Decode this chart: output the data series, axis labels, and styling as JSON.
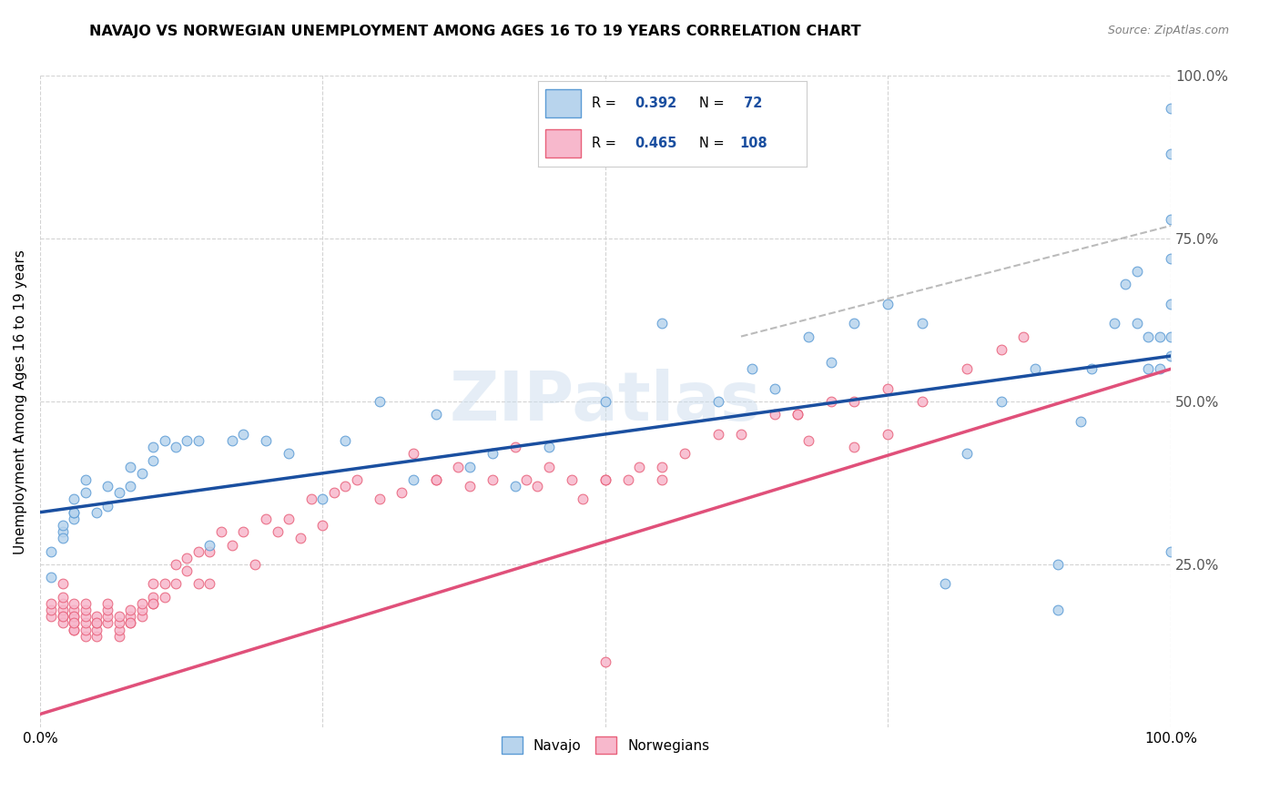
{
  "title": "NAVAJO VS NORWEGIAN UNEMPLOYMENT AMONG AGES 16 TO 19 YEARS CORRELATION CHART",
  "source": "Source: ZipAtlas.com",
  "ylabel": "Unemployment Among Ages 16 to 19 years",
  "xlim": [
    0,
    1
  ],
  "ylim": [
    0,
    1
  ],
  "xtick_labels": [
    "0.0%",
    "100.0%"
  ],
  "xtick_vals": [
    0.0,
    1.0
  ],
  "ytick_right_labels": [
    "25.0%",
    "50.0%",
    "75.0%",
    "100.0%"
  ],
  "ytick_right_vals": [
    0.25,
    0.5,
    0.75,
    1.0
  ],
  "navajo_color": "#b8d4ed",
  "norwegian_color": "#f7b8cc",
  "navajo_edge": "#5b9bd5",
  "norwegian_edge": "#e8607a",
  "trend_navajo_color": "#1a4fa0",
  "trend_norwegian_color": "#e0507a",
  "trend_dashed_color": "#bbbbbb",
  "legend_r_navajo": "R = 0.392",
  "legend_n_navajo": "N =  72",
  "legend_r_norwegian": "R = 0.465",
  "legend_n_norwegian": "N = 108",
  "watermark": "ZIPatlas",
  "background_color": "#ffffff",
  "navajo_trend": [
    0.33,
    0.57
  ],
  "norwegian_trend": [
    0.02,
    0.55
  ],
  "dashed_trend": [
    0.6,
    0.77
  ],
  "navajo_x": [
    0.01,
    0.01,
    0.02,
    0.02,
    0.02,
    0.03,
    0.03,
    0.03,
    0.03,
    0.04,
    0.04,
    0.05,
    0.06,
    0.06,
    0.07,
    0.08,
    0.08,
    0.09,
    0.1,
    0.1,
    0.11,
    0.12,
    0.13,
    0.14,
    0.15,
    0.17,
    0.18,
    0.2,
    0.22,
    0.25,
    0.27,
    0.3,
    0.33,
    0.35,
    0.38,
    0.4,
    0.42,
    0.45,
    0.5,
    0.55,
    0.6,
    0.63,
    0.65,
    0.68,
    0.7,
    0.72,
    0.75,
    0.78,
    0.8,
    0.82,
    0.85,
    0.88,
    0.9,
    0.9,
    0.92,
    0.93,
    0.95,
    0.96,
    0.97,
    0.97,
    0.98,
    0.98,
    0.99,
    0.99,
    1.0,
    1.0,
    1.0,
    1.0,
    1.0,
    1.0,
    1.0,
    1.0
  ],
  "navajo_y": [
    0.23,
    0.27,
    0.3,
    0.31,
    0.29,
    0.32,
    0.33,
    0.35,
    0.33,
    0.38,
    0.36,
    0.33,
    0.37,
    0.34,
    0.36,
    0.4,
    0.37,
    0.39,
    0.41,
    0.43,
    0.44,
    0.43,
    0.44,
    0.44,
    0.28,
    0.44,
    0.45,
    0.44,
    0.42,
    0.35,
    0.44,
    0.5,
    0.38,
    0.48,
    0.4,
    0.42,
    0.37,
    0.43,
    0.5,
    0.62,
    0.5,
    0.55,
    0.52,
    0.6,
    0.56,
    0.62,
    0.65,
    0.62,
    0.22,
    0.42,
    0.5,
    0.55,
    0.18,
    0.25,
    0.47,
    0.55,
    0.62,
    0.68,
    0.7,
    0.62,
    0.55,
    0.6,
    0.55,
    0.6,
    0.57,
    0.6,
    0.65,
    0.72,
    0.78,
    0.88,
    0.95,
    0.27
  ],
  "norwegian_x": [
    0.01,
    0.01,
    0.01,
    0.02,
    0.02,
    0.02,
    0.02,
    0.02,
    0.02,
    0.02,
    0.03,
    0.03,
    0.03,
    0.03,
    0.03,
    0.03,
    0.03,
    0.03,
    0.04,
    0.04,
    0.04,
    0.04,
    0.04,
    0.04,
    0.05,
    0.05,
    0.05,
    0.05,
    0.05,
    0.06,
    0.06,
    0.06,
    0.06,
    0.07,
    0.07,
    0.07,
    0.07,
    0.08,
    0.08,
    0.08,
    0.08,
    0.09,
    0.09,
    0.09,
    0.1,
    0.1,
    0.1,
    0.1,
    0.11,
    0.11,
    0.12,
    0.12,
    0.13,
    0.13,
    0.14,
    0.14,
    0.15,
    0.15,
    0.16,
    0.17,
    0.18,
    0.19,
    0.2,
    0.21,
    0.22,
    0.23,
    0.24,
    0.25,
    0.26,
    0.27,
    0.28,
    0.3,
    0.32,
    0.33,
    0.35,
    0.35,
    0.37,
    0.38,
    0.4,
    0.42,
    0.43,
    0.44,
    0.45,
    0.47,
    0.48,
    0.5,
    0.5,
    0.5,
    0.52,
    0.53,
    0.55,
    0.55,
    0.57,
    0.6,
    0.62,
    0.65,
    0.67,
    0.67,
    0.68,
    0.7,
    0.72,
    0.72,
    0.75,
    0.75,
    0.78,
    0.82,
    0.85,
    0.87
  ],
  "norwegian_y": [
    0.17,
    0.18,
    0.19,
    0.17,
    0.16,
    0.18,
    0.19,
    0.2,
    0.22,
    0.17,
    0.15,
    0.16,
    0.17,
    0.18,
    0.17,
    0.19,
    0.15,
    0.16,
    0.14,
    0.15,
    0.16,
    0.17,
    0.18,
    0.19,
    0.14,
    0.15,
    0.16,
    0.17,
    0.16,
    0.16,
    0.17,
    0.18,
    0.19,
    0.14,
    0.15,
    0.16,
    0.17,
    0.16,
    0.17,
    0.18,
    0.16,
    0.17,
    0.18,
    0.19,
    0.19,
    0.2,
    0.22,
    0.19,
    0.2,
    0.22,
    0.25,
    0.22,
    0.26,
    0.24,
    0.22,
    0.27,
    0.22,
    0.27,
    0.3,
    0.28,
    0.3,
    0.25,
    0.32,
    0.3,
    0.32,
    0.29,
    0.35,
    0.31,
    0.36,
    0.37,
    0.38,
    0.35,
    0.36,
    0.42,
    0.38,
    0.38,
    0.4,
    0.37,
    0.38,
    0.43,
    0.38,
    0.37,
    0.4,
    0.38,
    0.35,
    0.38,
    0.1,
    0.38,
    0.38,
    0.4,
    0.38,
    0.4,
    0.42,
    0.45,
    0.45,
    0.48,
    0.48,
    0.48,
    0.44,
    0.5,
    0.43,
    0.5,
    0.52,
    0.45,
    0.5,
    0.55,
    0.58,
    0.6
  ]
}
